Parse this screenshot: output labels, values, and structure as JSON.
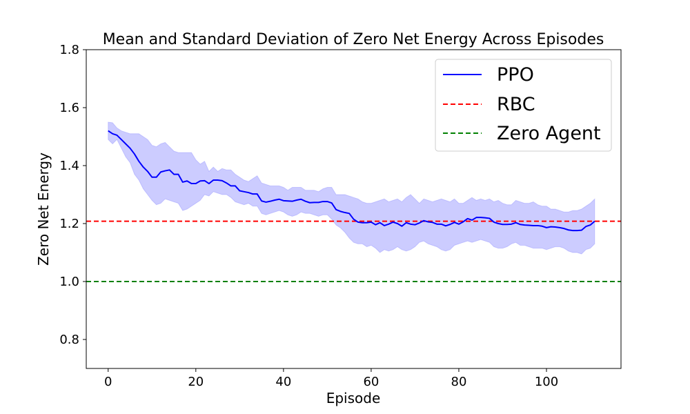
{
  "chart_data": {
    "type": "line",
    "title": "Mean and Standard Deviation of Zero Net Energy Across Episodes",
    "xlabel": "Episode",
    "ylabel": "Zero Net Energy",
    "xlim": [
      -5,
      117
    ],
    "ylim": [
      0.7,
      1.8
    ],
    "xticks": [
      0,
      20,
      40,
      60,
      80,
      100
    ],
    "yticks": [
      0.8,
      1.0,
      1.2,
      1.4,
      1.6,
      1.8
    ],
    "xtick_labels": [
      "0",
      "20",
      "40",
      "60",
      "80",
      "100"
    ],
    "ytick_labels": [
      "0.8",
      "1.0",
      "1.2",
      "1.4",
      "1.6",
      "1.8"
    ],
    "grid": false,
    "legend_position": "top-right",
    "series": [
      {
        "name": "PPO",
        "color": "#0000ff",
        "style": "solid",
        "x": [
          0,
          1,
          2,
          3,
          4,
          5,
          6,
          7,
          8,
          9,
          10,
          11,
          12,
          13,
          14,
          15,
          16,
          17,
          18,
          19,
          20,
          21,
          22,
          23,
          24,
          25,
          26,
          27,
          28,
          29,
          30,
          31,
          32,
          33,
          34,
          35,
          36,
          37,
          38,
          39,
          40,
          41,
          42,
          43,
          44,
          45,
          46,
          47,
          48,
          49,
          50,
          51,
          52,
          53,
          54,
          55,
          56,
          57,
          58,
          59,
          60,
          61,
          62,
          63,
          64,
          65,
          66,
          67,
          68,
          69,
          70,
          71,
          72,
          73,
          74,
          75,
          76,
          77,
          78,
          79,
          80,
          81,
          82,
          83,
          84,
          85,
          86,
          87,
          88,
          89,
          90,
          91,
          92,
          93,
          94,
          95,
          96,
          97,
          98,
          99,
          100,
          101,
          102,
          103,
          104,
          105,
          106,
          107,
          108,
          109,
          110,
          111
        ],
        "y": [
          1.52,
          1.51,
          1.505,
          1.49,
          1.475,
          1.46,
          1.44,
          1.415,
          1.395,
          1.38,
          1.36,
          1.36,
          1.378,
          1.382,
          1.385,
          1.37,
          1.37,
          1.343,
          1.347,
          1.338,
          1.338,
          1.347,
          1.348,
          1.338,
          1.35,
          1.35,
          1.348,
          1.34,
          1.33,
          1.33,
          1.313,
          1.31,
          1.307,
          1.302,
          1.302,
          1.278,
          1.274,
          1.277,
          1.281,
          1.284,
          1.279,
          1.278,
          1.277,
          1.281,
          1.284,
          1.277,
          1.272,
          1.273,
          1.273,
          1.276,
          1.276,
          1.271,
          1.248,
          1.242,
          1.238,
          1.235,
          1.215,
          1.205,
          1.203,
          1.203,
          1.205,
          1.196,
          1.203,
          1.193,
          1.198,
          1.205,
          1.2,
          1.191,
          1.203,
          1.198,
          1.196,
          1.202,
          1.21,
          1.206,
          1.204,
          1.198,
          1.198,
          1.192,
          1.197,
          1.204,
          1.198,
          1.206,
          1.217,
          1.212,
          1.221,
          1.221,
          1.22,
          1.218,
          1.205,
          1.2,
          1.197,
          1.197,
          1.198,
          1.203,
          1.197,
          1.195,
          1.194,
          1.193,
          1.193,
          1.191,
          1.186,
          1.189,
          1.188,
          1.186,
          1.183,
          1.178,
          1.176,
          1.176,
          1.177,
          1.19,
          1.195,
          1.208
        ]
      },
      {
        "name": "RBC",
        "color": "#ff0000",
        "style": "dashed",
        "constant": 1.208
      },
      {
        "name": "Zero Agent",
        "color": "#008000",
        "style": "dashed",
        "constant": 1.0
      }
    ],
    "band": {
      "color": "#0000ff",
      "opacity": 0.2,
      "lower": [
        1.49,
        1.475,
        1.49,
        1.46,
        1.43,
        1.41,
        1.37,
        1.35,
        1.32,
        1.3,
        1.28,
        1.265,
        1.27,
        1.285,
        1.28,
        1.275,
        1.27,
        1.245,
        1.25,
        1.26,
        1.27,
        1.28,
        1.3,
        1.295,
        1.31,
        1.305,
        1.3,
        1.3,
        1.29,
        1.275,
        1.27,
        1.265,
        1.27,
        1.26,
        1.26,
        1.235,
        1.23,
        1.235,
        1.24,
        1.245,
        1.24,
        1.23,
        1.225,
        1.23,
        1.24,
        1.235,
        1.235,
        1.23,
        1.225,
        1.23,
        1.23,
        1.215,
        1.195,
        1.185,
        1.17,
        1.15,
        1.135,
        1.13,
        1.13,
        1.12,
        1.125,
        1.115,
        1.1,
        1.11,
        1.105,
        1.11,
        1.12,
        1.11,
        1.105,
        1.11,
        1.12,
        1.135,
        1.14,
        1.13,
        1.125,
        1.12,
        1.11,
        1.105,
        1.11,
        1.125,
        1.13,
        1.135,
        1.14,
        1.135,
        1.14,
        1.145,
        1.14,
        1.135,
        1.12,
        1.115,
        1.115,
        1.12,
        1.13,
        1.135,
        1.125,
        1.125,
        1.12,
        1.115,
        1.115,
        1.115,
        1.11,
        1.115,
        1.12,
        1.12,
        1.115,
        1.105,
        1.1,
        1.1,
        1.095,
        1.11,
        1.115,
        1.13
      ],
      "upper": [
        1.55,
        1.548,
        1.53,
        1.52,
        1.515,
        1.51,
        1.51,
        1.51,
        1.5,
        1.49,
        1.47,
        1.465,
        1.475,
        1.48,
        1.465,
        1.45,
        1.445,
        1.445,
        1.445,
        1.445,
        1.42,
        1.405,
        1.415,
        1.38,
        1.395,
        1.38,
        1.39,
        1.385,
        1.385,
        1.37,
        1.36,
        1.35,
        1.345,
        1.355,
        1.365,
        1.34,
        1.335,
        1.33,
        1.33,
        1.33,
        1.325,
        1.315,
        1.325,
        1.325,
        1.325,
        1.315,
        1.315,
        1.315,
        1.31,
        1.32,
        1.325,
        1.325,
        1.3,
        1.3,
        1.3,
        1.295,
        1.29,
        1.285,
        1.275,
        1.27,
        1.27,
        1.275,
        1.28,
        1.285,
        1.275,
        1.28,
        1.285,
        1.275,
        1.29,
        1.3,
        1.285,
        1.27,
        1.285,
        1.28,
        1.275,
        1.28,
        1.285,
        1.28,
        1.275,
        1.285,
        1.27,
        1.27,
        1.28,
        1.29,
        1.28,
        1.285,
        1.28,
        1.285,
        1.275,
        1.28,
        1.27,
        1.265,
        1.265,
        1.28,
        1.275,
        1.27,
        1.27,
        1.275,
        1.265,
        1.26,
        1.26,
        1.25,
        1.25,
        1.245,
        1.24,
        1.24,
        1.245,
        1.245,
        1.25,
        1.26,
        1.27,
        1.285
      ]
    }
  }
}
